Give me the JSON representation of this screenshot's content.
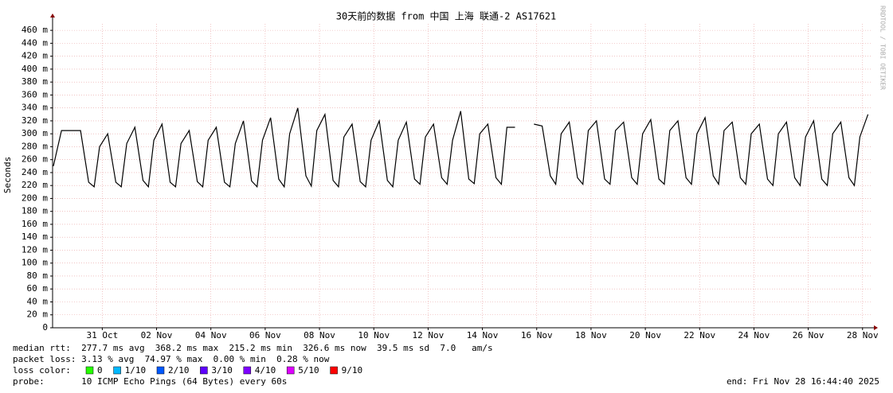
{
  "chart_data": {
    "type": "line",
    "title": "30天前的数据 from 中国 上海 联通-2 AS17621",
    "y_label": "Seconds",
    "side_text": "RRDTOOL / TOBI OETIKER",
    "color": "#000000",
    "grid": true,
    "xlim": [
      -1.83,
      28.3
    ],
    "xticks": [
      {
        "value": 0,
        "label": "31 Oct"
      },
      {
        "value": 2,
        "label": "02 Nov"
      },
      {
        "value": 4,
        "label": "04 Nov"
      },
      {
        "value": 6,
        "label": "06 Nov"
      },
      {
        "value": 8,
        "label": "08 Nov"
      },
      {
        "value": 10,
        "label": "10 Nov"
      },
      {
        "value": 12,
        "label": "12 Nov"
      },
      {
        "value": 14,
        "label": "14 Nov"
      },
      {
        "value": 16,
        "label": "16 Nov"
      },
      {
        "value": 18,
        "label": "18 Nov"
      },
      {
        "value": 20,
        "label": "20 Nov"
      },
      {
        "value": 22,
        "label": "22 Nov"
      },
      {
        "value": 24,
        "label": "24 Nov"
      },
      {
        "value": 26,
        "label": "26 Nov"
      },
      {
        "value": 28,
        "label": "28 Nov"
      }
    ],
    "ylim": [
      0,
      470
    ],
    "yticks": [
      0,
      {
        "value": 20,
        "label": "20 m"
      },
      {
        "value": 40,
        "label": "40 m"
      },
      {
        "value": 60,
        "label": "60 m"
      },
      {
        "value": 80,
        "label": "80 m"
      },
      {
        "value": 100,
        "label": "100 m"
      },
      {
        "value": 120,
        "label": "120 m"
      },
      {
        "value": 140,
        "label": "140 m"
      },
      {
        "value": 160,
        "label": "160 m"
      },
      {
        "value": 180,
        "label": "180 m"
      },
      {
        "value": 200,
        "label": "200 m"
      },
      {
        "value": 220,
        "label": "220 m"
      },
      {
        "value": 240,
        "label": "240 m"
      },
      {
        "value": 260,
        "label": "260 m"
      },
      {
        "value": 280,
        "label": "280 m"
      },
      {
        "value": 300,
        "label": "300 m"
      },
      {
        "value": 320,
        "label": "320 m"
      },
      {
        "value": 340,
        "label": "340 m"
      },
      {
        "value": 360,
        "label": "360 m"
      },
      {
        "value": 380,
        "label": "380 m"
      },
      {
        "value": 400,
        "label": "400 m"
      },
      {
        "value": 420,
        "label": "420 m"
      },
      {
        "value": 440,
        "label": "440 m"
      },
      {
        "value": 460,
        "label": "460 m"
      }
    ],
    "x": [
      -1.8,
      -1.5,
      -0.8,
      -0.5,
      -0.3,
      -0.1,
      0.2,
      0.5,
      0.7,
      0.9,
      1.2,
      1.5,
      1.7,
      1.9,
      2.2,
      2.5,
      2.7,
      2.9,
      3.2,
      3.5,
      3.7,
      3.9,
      4.2,
      4.5,
      4.7,
      4.9,
      5.2,
      5.5,
      5.7,
      5.9,
      6.2,
      6.5,
      6.7,
      6.9,
      7.2,
      7.5,
      7.7,
      7.9,
      8.2,
      8.5,
      8.7,
      8.9,
      9.2,
      9.5,
      9.7,
      9.9,
      10.2,
      10.5,
      10.7,
      10.9,
      11.2,
      11.5,
      11.7,
      11.9,
      12.2,
      12.5,
      12.7,
      12.9,
      13.2,
      13.5,
      13.7,
      13.9,
      14.2,
      14.5,
      14.7,
      14.9,
      15.2,
      15.5,
      15.7,
      15.9,
      16.2,
      16.5,
      16.7,
      16.9,
      17.2,
      17.5,
      17.7,
      17.9,
      18.2,
      18.5,
      18.7,
      18.9,
      19.2,
      19.5,
      19.7,
      19.9,
      20.2,
      20.5,
      20.7,
      20.9,
      21.2,
      21.5,
      21.7,
      21.9,
      22.2,
      22.5,
      22.7,
      22.9,
      23.2,
      23.5,
      23.7,
      23.9,
      24.2,
      24.5,
      24.7,
      24.9,
      25.2,
      25.5,
      25.7,
      25.9,
      26.2,
      26.5,
      26.7,
      26.9,
      27.2,
      27.5,
      27.7,
      27.9,
      28.2
    ],
    "values": [
      250,
      305,
      305,
      225,
      218,
      280,
      300,
      225,
      218,
      285,
      310,
      228,
      218,
      290,
      315,
      225,
      218,
      285,
      305,
      226,
      218,
      290,
      310,
      225,
      218,
      285,
      320,
      227,
      218,
      290,
      325,
      230,
      218,
      300,
      340,
      235,
      219,
      305,
      330,
      228,
      218,
      295,
      315,
      226,
      218,
      290,
      320,
      228,
      218,
      290,
      318,
      230,
      222,
      295,
      315,
      232,
      222,
      290,
      335,
      230,
      223,
      300,
      315,
      232,
      222,
      310,
      310,
      null,
      null,
      315,
      312,
      235,
      222,
      300,
      318,
      232,
      222,
      305,
      320,
      230,
      222,
      305,
      318,
      232,
      222,
      300,
      322,
      230,
      222,
      305,
      320,
      232,
      222,
      300,
      325,
      235,
      222,
      305,
      318,
      232,
      222,
      300,
      315,
      230,
      220,
      300,
      318,
      232,
      220,
      295,
      320,
      230,
      220,
      300,
      318,
      232,
      220,
      295,
      330
    ]
  },
  "legend_text": {
    "median_rtt": "median rtt:  277.7 ms avg  368.2 ms max  215.2 ms min  326.6 ms now  39.5 ms sd  7.0   am/s",
    "packet_loss": "packet loss: 3.13 % avg  74.97 % max  0.00 % min  0.28 % now",
    "loss_color_label": "loss color:",
    "loss_colors": [
      {
        "label": "0",
        "color": "#26ff00"
      },
      {
        "label": "1/10",
        "color": "#00b8ff"
      },
      {
        "label": "2/10",
        "color": "#0059ff"
      },
      {
        "label": "3/10",
        "color": "#5e00ff"
      },
      {
        "label": "4/10",
        "color": "#7e00ff"
      },
      {
        "label": "5/10",
        "color": "#dd00ff"
      },
      {
        "label": "9/10",
        "color": "#ff0000"
      }
    ],
    "probe": "probe:       10 ICMP Echo Pings (64 Bytes) every 60s",
    "end": "end: Fri Nov 28 16:44:40 2025"
  }
}
